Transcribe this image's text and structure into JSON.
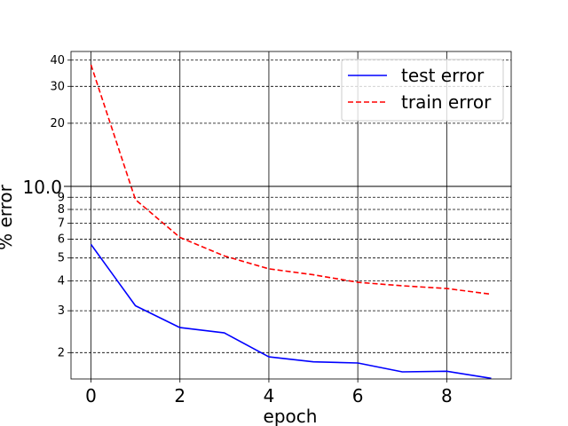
{
  "chart_data": {
    "type": "line",
    "title": "",
    "xlabel": "epoch",
    "ylabel": "% error",
    "xlim": [
      -0.45,
      9.45
    ],
    "yscale": "log",
    "ylim_lower_panel": [
      1.55,
      10.0
    ],
    "ylim_upper_panel": [
      10.0,
      44
    ],
    "split_value_label": "10.0",
    "x_ticks": [
      "0",
      "2",
      "4",
      "6",
      "8"
    ],
    "x_tick_values": [
      0,
      2,
      4,
      6,
      8
    ],
    "y_ticks_upper": [
      "20",
      "30",
      "40"
    ],
    "y_tick_values_upper": [
      20,
      30,
      40
    ],
    "y_ticks_lower": [
      "2",
      "3",
      "4",
      "5",
      "6",
      "7",
      "8",
      "9"
    ],
    "y_tick_values_lower": [
      2,
      3,
      4,
      5,
      6,
      7,
      8,
      9
    ],
    "grid": true,
    "legend_position": "top-right",
    "x": [
      0,
      1,
      2,
      3,
      4,
      5,
      6,
      7,
      8,
      9
    ],
    "series": [
      {
        "name": "test error",
        "color": "#0000ff",
        "dash": "solid",
        "values": [
          5.7,
          3.15,
          2.55,
          2.42,
          1.92,
          1.83,
          1.81,
          1.66,
          1.67,
          1.56
        ]
      },
      {
        "name": "train error",
        "color": "#ff0000",
        "dash": "dashed",
        "values": [
          38,
          8.8,
          6.1,
          5.1,
          4.5,
          4.25,
          3.95,
          3.82,
          3.72,
          3.52
        ]
      }
    ]
  }
}
